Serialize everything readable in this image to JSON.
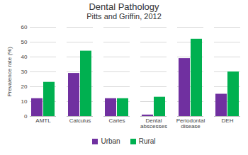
{
  "chart_data": {
    "type": "bar",
    "title": "Dental Pathology",
    "subtitle": "Pitts and Griffin, 2012",
    "y_label": "Prevalence rate (%)",
    "categories": [
      "AMTL",
      "Calculus",
      "Caries",
      "Dental abscesses",
      "Periodontal disease",
      "DEH"
    ],
    "series": [
      {
        "name": "Urban",
        "color": "#7030a0",
        "values": [
          12,
          29,
          12,
          1,
          39,
          15
        ]
      },
      {
        "name": "Rural",
        "color": "#00b050",
        "values": [
          23,
          44,
          12,
          13,
          52,
          30
        ]
      }
    ],
    "ylim": [
      0,
      60
    ],
    "yticks": [
      0,
      10,
      20,
      30,
      40,
      50,
      60
    ],
    "grid": true,
    "legend": "bottom"
  }
}
